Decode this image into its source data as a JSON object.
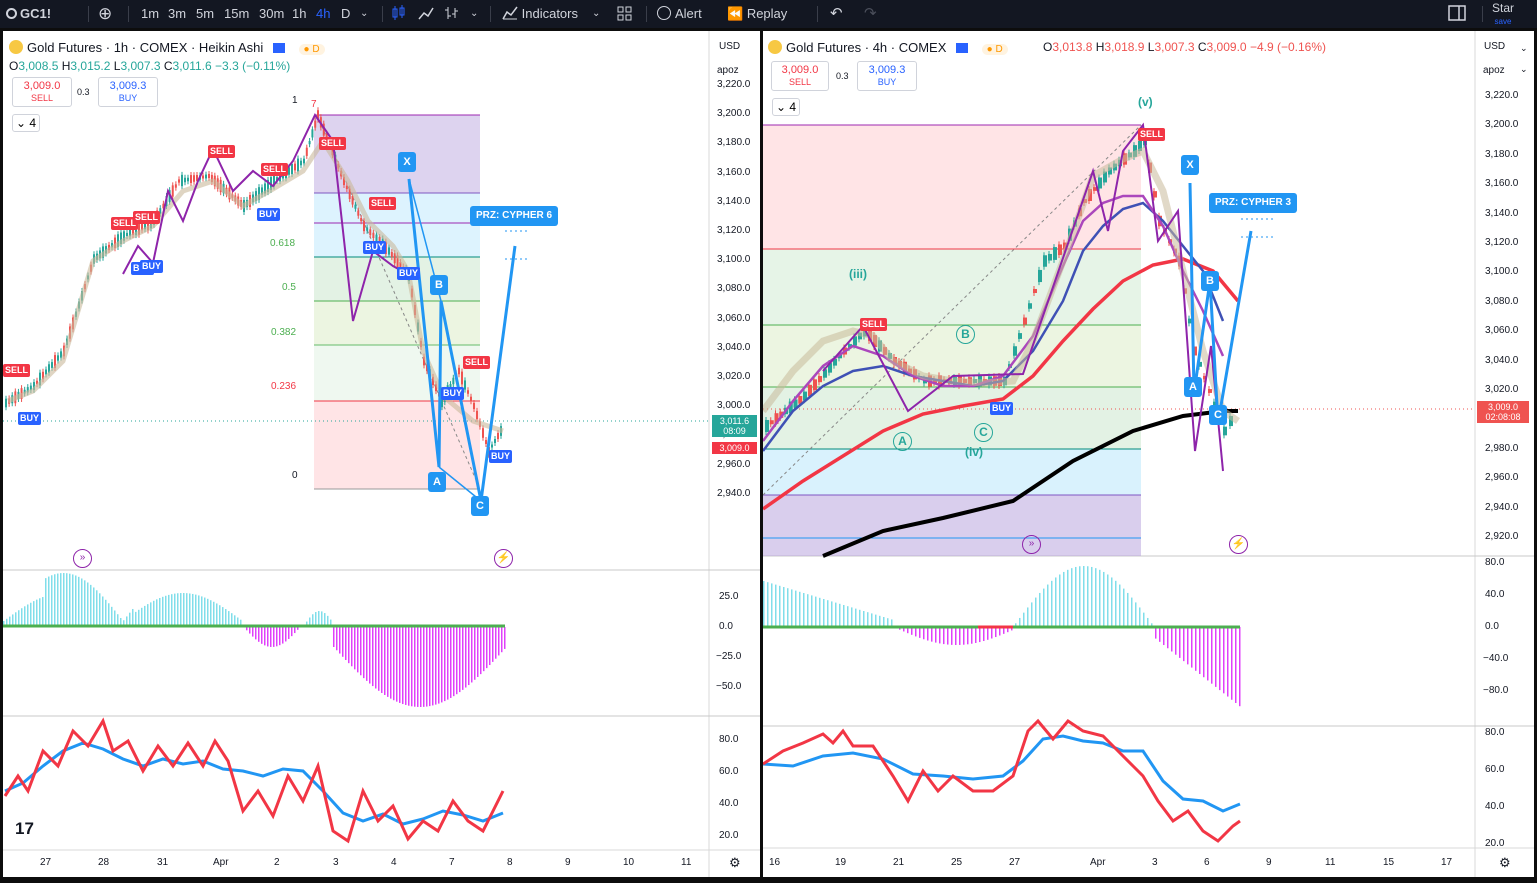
{
  "toolbar": {
    "symbol": "GC1!",
    "intervals": [
      "1m",
      "3m",
      "5m",
      "15m",
      "30m",
      "1h",
      "4h",
      "D"
    ],
    "active_interval": "4h",
    "indicators_label": "Indicators",
    "alert_label": "Alert",
    "replay_label": "Replay",
    "star_label": "Star",
    "save_label": "save"
  },
  "left": {
    "title": "Gold Futures · 1h · COMEX · Heikin Ashi",
    "badge": "D",
    "ohlc": {
      "o": "3,008.5",
      "h": "3,015.2",
      "l": "3,007.3",
      "c": "3,011.6",
      "chg": "−3.3 (−0.11%)"
    },
    "sell_price": "3,009.0",
    "sell_label": "SELL",
    "spread": "0.3",
    "buy_price": "3,009.3",
    "buy_label": "BUY",
    "layers": "4",
    "currency": "USD",
    "scale": "apoz",
    "prices": [
      "3,220.0",
      "3,200.0",
      "3,180.0",
      "3,160.0",
      "3,140.0",
      "3,120.0",
      "3,100.0",
      "3,080.0",
      "3,060.0",
      "3,040.0",
      "3,020.0",
      "3,000.0",
      "2,980.0",
      "2,960.0",
      "2,940.0"
    ],
    "fib_labels": [
      "1",
      "0.618",
      "0.5",
      "0.382",
      "0.236",
      "0"
    ],
    "fib_extra": "7",
    "last_price": "3,011.6",
    "last_time": "08:09",
    "sell_tag_price": "3,009.0",
    "pattern_points": [
      "X",
      "A",
      "B",
      "C"
    ],
    "prz_label": "PRZ: CYPHER 6",
    "signals": [
      "SELL",
      "SELL",
      "SELL",
      "SELL",
      "SELL",
      "SELL",
      "SELL",
      "SELL",
      "BUY",
      "BUY",
      "BUY",
      "BUY",
      "BUY",
      "BUY",
      "BUY",
      "BUY"
    ],
    "osc_labels": [
      "25.0",
      "0.0",
      "−25.0",
      "−50.0"
    ],
    "rsi_labels": [
      "80.0",
      "60.0",
      "40.0",
      "20.0"
    ],
    "dates": [
      "27",
      "28",
      "31",
      "Apr",
      "2",
      "3",
      "4",
      "7",
      "8",
      "9",
      "10",
      "11"
    ]
  },
  "right": {
    "title": "Gold Futures · 4h · COMEX",
    "badge": "D",
    "ohlc": {
      "o": "3,013.8",
      "h": "3,018.9",
      "l": "3,007.3",
      "c": "3,009.0",
      "chg": "−4.9 (−0.16%)"
    },
    "sell_price": "3,009.0",
    "sell_label": "SELL",
    "spread": "0.3",
    "buy_price": "3,009.3",
    "buy_label": "BUY",
    "layers": "4",
    "currency": "USD",
    "scale": "apoz",
    "prices": [
      "3,220.0",
      "3,200.0",
      "3,180.0",
      "3,160.0",
      "3,140.0",
      "3,120.0",
      "3,100.0",
      "3,080.0",
      "3,060.0",
      "3,040.0",
      "3,020.0",
      "3,000.0",
      "2,980.0",
      "2,960.0",
      "2,940.0",
      "2,920.0"
    ],
    "last_price": "3,009.0",
    "last_time": "02:08:08",
    "pattern_points": [
      "X",
      "A",
      "B",
      "C"
    ],
    "prz_label": "PRZ: CYPHER 3",
    "waves": [
      "(v)",
      "(iii)",
      "(iv)",
      "A",
      "B",
      "C"
    ],
    "signals": [
      "SELL",
      "SELL",
      "BUY"
    ],
    "osc_labels": [
      "80.0",
      "40.0",
      "0.0",
      "−40.0",
      "−80.0"
    ],
    "rsi_labels": [
      "80.0",
      "60.0",
      "40.0",
      "20.0"
    ],
    "dates": [
      "16",
      "19",
      "21",
      "25",
      "27",
      "Apr",
      "3",
      "6",
      "9",
      "11",
      "15",
      "17"
    ]
  },
  "colors": {
    "bull": "#26a69a",
    "bear": "#ef5350",
    "pattern": "#2196f3",
    "elliott": "#8e24aa",
    "fib_red": "#f23645",
    "fib_green": "#4caf50",
    "fib_purple": "#9c27b0",
    "ma_black": "#000000"
  }
}
